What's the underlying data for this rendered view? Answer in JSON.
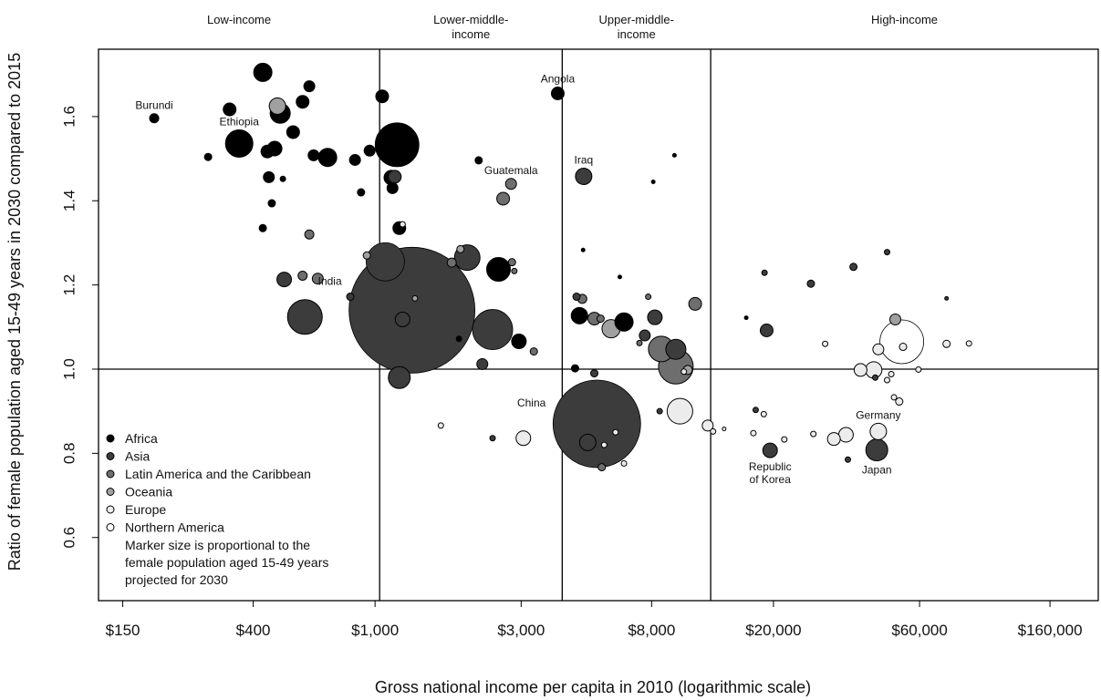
{
  "chart_data": {
    "type": "scatter",
    "title": "",
    "xlabel": "Gross national income per capita in 2010 (logarithmic scale)",
    "ylabel": "Ratio of female population aged 15-49 years in 2030 compared to 2015",
    "x_scale": "log",
    "xlim": [
      125,
      230000
    ],
    "ylim": [
      0.45,
      1.76
    ],
    "x_ticks": [
      150,
      400,
      1000,
      3000,
      8000,
      20000,
      60000,
      160000
    ],
    "x_tick_labels": [
      "$150",
      "$400",
      "$1,000",
      "$3,000",
      "$8,000",
      "$20,000",
      "$60,000",
      "$160,000"
    ],
    "y_ticks": [
      0.6,
      0.8,
      1.0,
      1.2,
      1.4,
      1.6
    ],
    "y_tick_labels": [
      "0.6",
      "0.8",
      "1.0",
      "1.2",
      "1.4",
      "1.6"
    ],
    "grid": false,
    "reference_lines": {
      "y": [
        1.0
      ],
      "x": [
        1035,
        4085,
        12475
      ]
    },
    "income_groups": [
      {
        "label": "Low-income",
        "x_from": 125,
        "x_to": 1035
      },
      {
        "label": "Lower-middle-\nincome",
        "x_from": 1035,
        "x_to": 4085
      },
      {
        "label": "Upper-middle-\nincome",
        "x_from": 4085,
        "x_to": 12475
      },
      {
        "label": "High-income",
        "x_from": 12475,
        "x_to": 230000
      }
    ],
    "regions": [
      {
        "name": "Africa",
        "color": "#000000"
      },
      {
        "name": "Asia",
        "color": "#3c3c3c"
      },
      {
        "name": "Latin America and the Caribbean",
        "color": "#6e6e6e"
      },
      {
        "name": "Oceania",
        "color": "#a0a0a0"
      },
      {
        "name": "Europe",
        "color": "#ececec"
      },
      {
        "name": "Northern America",
        "color": "#ffffff"
      }
    ],
    "legend_position": "bottom-left",
    "legend_note": "Marker size is proportional to the\nfemale population aged 15-49 years\nprojected for 2030",
    "points": [
      {
        "x": 190,
        "y": 1.596,
        "size": 5,
        "region": "Africa",
        "label": "Burundi"
      },
      {
        "x": 360,
        "y": 1.536,
        "size": 15,
        "region": "Africa",
        "label": "Ethiopia"
      },
      {
        "x": 335,
        "y": 1.617,
        "size": 7,
        "region": "Africa"
      },
      {
        "x": 430,
        "y": 1.705,
        "size": 10,
        "region": "Africa"
      },
      {
        "x": 480,
        "y": 1.625,
        "size": 9,
        "region": "Oceania"
      },
      {
        "x": 490,
        "y": 1.608,
        "size": 11,
        "region": "Africa"
      },
      {
        "x": 285,
        "y": 1.504,
        "size": 4,
        "region": "Africa"
      },
      {
        "x": 470,
        "y": 1.524,
        "size": 8,
        "region": "Africa"
      },
      {
        "x": 445,
        "y": 1.517,
        "size": 7,
        "region": "Africa"
      },
      {
        "x": 580,
        "y": 1.635,
        "size": 7,
        "region": "Africa"
      },
      {
        "x": 610,
        "y": 1.672,
        "size": 6,
        "region": "Africa"
      },
      {
        "x": 540,
        "y": 1.563,
        "size": 7,
        "region": "Africa"
      },
      {
        "x": 450,
        "y": 1.456,
        "size": 6,
        "region": "Africa"
      },
      {
        "x": 500,
        "y": 1.452,
        "size": 3,
        "region": "Africa"
      },
      {
        "x": 630,
        "y": 1.508,
        "size": 6,
        "region": "Africa"
      },
      {
        "x": 700,
        "y": 1.503,
        "size": 10,
        "region": "Africa"
      },
      {
        "x": 860,
        "y": 1.497,
        "size": 6,
        "region": "Africa"
      },
      {
        "x": 960,
        "y": 1.519,
        "size": 6,
        "region": "Africa"
      },
      {
        "x": 1180,
        "y": 1.533,
        "size": 24,
        "region": "Africa"
      },
      {
        "x": 1055,
        "y": 1.648,
        "size": 7,
        "region": "Africa"
      },
      {
        "x": 1130,
        "y": 1.455,
        "size": 8,
        "region": "Africa"
      },
      {
        "x": 1160,
        "y": 1.457,
        "size": 7,
        "region": "Asia"
      },
      {
        "x": 1140,
        "y": 1.43,
        "size": 6,
        "region": "Africa"
      },
      {
        "x": 460,
        "y": 1.394,
        "size": 4,
        "region": "Africa"
      },
      {
        "x": 430,
        "y": 1.335,
        "size": 4,
        "region": "Africa"
      },
      {
        "x": 900,
        "y": 1.42,
        "size": 4,
        "region": "Africa"
      },
      {
        "x": 1200,
        "y": 1.335,
        "size": 7,
        "region": "Africa"
      },
      {
        "x": 1230,
        "y": 1.344,
        "size": 3,
        "region": "Europe"
      },
      {
        "x": 1080,
        "y": 1.255,
        "size": 21,
        "region": "Asia"
      },
      {
        "x": 940,
        "y": 1.27,
        "size": 4,
        "region": "Oceania"
      },
      {
        "x": 830,
        "y": 1.172,
        "size": 4,
        "region": "Asia"
      },
      {
        "x": 610,
        "y": 1.32,
        "size": 5,
        "region": "Latin America and the Caribbean"
      },
      {
        "x": 505,
        "y": 1.213,
        "size": 8,
        "region": "Asia"
      },
      {
        "x": 580,
        "y": 1.222,
        "size": 5,
        "region": "Latin America and the Caribbean"
      },
      {
        "x": 650,
        "y": 1.215,
        "size": 6,
        "region": "Latin America and the Caribbean"
      },
      {
        "x": 590,
        "y": 1.124,
        "size": 19,
        "region": "Asia"
      },
      {
        "x": 1320,
        "y": 1.14,
        "size": 69,
        "region": "Asia",
        "label": "India"
      },
      {
        "x": 1230,
        "y": 1.118,
        "size": 8,
        "region": "Asia"
      },
      {
        "x": 1350,
        "y": 1.168,
        "size": 3,
        "region": "Oceania"
      },
      {
        "x": 1200,
        "y": 0.98,
        "size": 12,
        "region": "Asia"
      },
      {
        "x": 2000,
        "y": 1.265,
        "size": 14,
        "region": "Asia"
      },
      {
        "x": 1900,
        "y": 1.285,
        "size": 4,
        "region": "Oceania"
      },
      {
        "x": 1780,
        "y": 1.253,
        "size": 5,
        "region": "Latin America and the Caribbean"
      },
      {
        "x": 2530,
        "y": 1.237,
        "size": 13,
        "region": "Africa"
      },
      {
        "x": 2800,
        "y": 1.254,
        "size": 4,
        "region": "Latin America and the Caribbean"
      },
      {
        "x": 2850,
        "y": 1.233,
        "size": 3,
        "region": "Latin America and the Caribbean"
      },
      {
        "x": 2420,
        "y": 1.094,
        "size": 22,
        "region": "Asia"
      },
      {
        "x": 2180,
        "y": 1.496,
        "size": 4,
        "region": "Africa"
      },
      {
        "x": 2620,
        "y": 1.405,
        "size": 7,
        "region": "Latin America and the Caribbean"
      },
      {
        "x": 2780,
        "y": 1.44,
        "size": 6,
        "region": "Latin America and the Caribbean",
        "label": "Guatemala"
      },
      {
        "x": 1880,
        "y": 1.072,
        "size": 3,
        "region": "Africa"
      },
      {
        "x": 2240,
        "y": 1.012,
        "size": 6,
        "region": "Asia"
      },
      {
        "x": 2950,
        "y": 1.066,
        "size": 8,
        "region": "Africa"
      },
      {
        "x": 3300,
        "y": 1.042,
        "size": 4,
        "region": "Latin America and the Caribbean"
      },
      {
        "x": 1640,
        "y": 0.866,
        "size": 3,
        "region": "Europe"
      },
      {
        "x": 2420,
        "y": 0.836,
        "size": 3,
        "region": "Asia"
      },
      {
        "x": 3050,
        "y": 0.836,
        "size": 8,
        "region": "Europe"
      },
      {
        "x": 3950,
        "y": 1.655,
        "size": 7,
        "region": "Africa",
        "label": "Angola"
      },
      {
        "x": 4800,
        "y": 1.458,
        "size": 9,
        "region": "Asia",
        "label": "Iraq"
      },
      {
        "x": 4550,
        "y": 1.172,
        "size": 4,
        "region": "Asia"
      },
      {
        "x": 4750,
        "y": 1.167,
        "size": 5,
        "region": "Latin America and the Caribbean"
      },
      {
        "x": 4650,
        "y": 1.127,
        "size": 9,
        "region": "Africa"
      },
      {
        "x": 5200,
        "y": 1.12,
        "size": 7,
        "region": "Latin America and the Caribbean"
      },
      {
        "x": 5450,
        "y": 1.12,
        "size": 4,
        "region": "Latin America and the Caribbean"
      },
      {
        "x": 5900,
        "y": 1.096,
        "size": 10,
        "region": "Oceania"
      },
      {
        "x": 6500,
        "y": 1.112,
        "size": 10,
        "region": "Africa"
      },
      {
        "x": 4500,
        "y": 1.002,
        "size": 4,
        "region": "Africa"
      },
      {
        "x": 4780,
        "y": 1.283,
        "size": 2,
        "region": "Africa"
      },
      {
        "x": 6300,
        "y": 1.219,
        "size": 2,
        "region": "Africa"
      },
      {
        "x": 5200,
        "y": 0.99,
        "size": 4,
        "region": "Asia"
      },
      {
        "x": 5300,
        "y": 0.87,
        "size": 48,
        "region": "Asia",
        "label": "China"
      },
      {
        "x": 4950,
        "y": 0.826,
        "size": 9,
        "region": "Asia"
      },
      {
        "x": 5600,
        "y": 0.82,
        "size": 3,
        "region": "Europe"
      },
      {
        "x": 5500,
        "y": 0.767,
        "size": 4,
        "region": "Latin America and the Caribbean"
      },
      {
        "x": 6100,
        "y": 0.85,
        "size": 3,
        "region": "Europe"
      },
      {
        "x": 6500,
        "y": 0.776,
        "size": 3,
        "region": "Europe"
      },
      {
        "x": 7300,
        "y": 1.062,
        "size": 3,
        "region": "Latin America and the Caribbean"
      },
      {
        "x": 7600,
        "y": 1.08,
        "size": 6,
        "region": "Asia"
      },
      {
        "x": 8200,
        "y": 1.123,
        "size": 8,
        "region": "Asia"
      },
      {
        "x": 7800,
        "y": 1.172,
        "size": 3,
        "region": "Latin America and the Caribbean"
      },
      {
        "x": 8600,
        "y": 1.048,
        "size": 14,
        "region": "Latin America and the Caribbean"
      },
      {
        "x": 9600,
        "y": 1.047,
        "size": 11,
        "region": "Asia"
      },
      {
        "x": 9600,
        "y": 1.006,
        "size": 19,
        "region": "Latin America and the Caribbean"
      },
      {
        "x": 10500,
        "y": 0.998,
        "size": 5,
        "region": "Oceania"
      },
      {
        "x": 11100,
        "y": 1.155,
        "size": 7,
        "region": "Latin America and the Caribbean"
      },
      {
        "x": 8100,
        "y": 1.445,
        "size": 2,
        "region": "Africa"
      },
      {
        "x": 9500,
        "y": 1.508,
        "size": 2,
        "region": "Africa"
      },
      {
        "x": 8500,
        "y": 0.9,
        "size": 3,
        "region": "Asia"
      },
      {
        "x": 9900,
        "y": 0.9,
        "size": 14,
        "region": "Europe"
      },
      {
        "x": 10200,
        "y": 0.994,
        "size": 3,
        "region": "Europe"
      },
      {
        "x": 12200,
        "y": 0.866,
        "size": 6,
        "region": "Europe"
      },
      {
        "x": 12700,
        "y": 0.852,
        "size": 3,
        "region": "Europe"
      },
      {
        "x": 13800,
        "y": 0.858,
        "size": 2,
        "region": "Europe"
      },
      {
        "x": 16300,
        "y": 1.122,
        "size": 2,
        "region": "Africa"
      },
      {
        "x": 19000,
        "y": 1.092,
        "size": 7,
        "region": "Asia"
      },
      {
        "x": 18700,
        "y": 1.229,
        "size": 3,
        "region": "Asia"
      },
      {
        "x": 19500,
        "y": 0.807,
        "size": 8,
        "region": "Asia",
        "label": "Republic\nof Korea"
      },
      {
        "x": 17200,
        "y": 0.848,
        "size": 3,
        "region": "Europe"
      },
      {
        "x": 17500,
        "y": 0.903,
        "size": 3,
        "region": "Asia"
      },
      {
        "x": 18600,
        "y": 0.893,
        "size": 3,
        "region": "Europe"
      },
      {
        "x": 21700,
        "y": 0.833,
        "size": 3,
        "region": "Europe"
      },
      {
        "x": 26500,
        "y": 1.203,
        "size": 4,
        "region": "Asia"
      },
      {
        "x": 29500,
        "y": 1.06,
        "size": 3,
        "region": "Europe"
      },
      {
        "x": 27000,
        "y": 0.846,
        "size": 3,
        "region": "Europe"
      },
      {
        "x": 31500,
        "y": 0.834,
        "size": 7,
        "region": "Europe"
      },
      {
        "x": 34500,
        "y": 0.844,
        "size": 8,
        "region": "Europe"
      },
      {
        "x": 35000,
        "y": 0.785,
        "size": 3,
        "region": "Asia"
      },
      {
        "x": 36500,
        "y": 1.243,
        "size": 4,
        "region": "Asia"
      },
      {
        "x": 38500,
        "y": 0.998,
        "size": 7,
        "region": "Europe"
      },
      {
        "x": 42500,
        "y": 0.998,
        "size": 9,
        "region": "Europe"
      },
      {
        "x": 44000,
        "y": 1.047,
        "size": 6,
        "region": "Europe"
      },
      {
        "x": 43000,
        "y": 0.98,
        "size": 3,
        "region": "Asia"
      },
      {
        "x": 47000,
        "y": 1.278,
        "size": 3,
        "region": "Asia"
      },
      {
        "x": 43500,
        "y": 0.808,
        "size": 12,
        "region": "Asia",
        "label": "Japan"
      },
      {
        "x": 44000,
        "y": 0.852,
        "size": 9,
        "region": "Europe",
        "label": "Germany"
      },
      {
        "x": 47000,
        "y": 0.974,
        "size": 3,
        "region": "Europe"
      },
      {
        "x": 48500,
        "y": 0.988,
        "size": 3,
        "region": "Europe"
      },
      {
        "x": 50000,
        "y": 1.118,
        "size": 6,
        "region": "Oceania"
      },
      {
        "x": 52500,
        "y": 1.065,
        "size": 24,
        "region": "Northern America"
      },
      {
        "x": 53000,
        "y": 1.053,
        "size": 4,
        "region": "Europe"
      },
      {
        "x": 49500,
        "y": 0.933,
        "size": 3,
        "region": "Europe"
      },
      {
        "x": 51500,
        "y": 0.923,
        "size": 4,
        "region": "Europe"
      },
      {
        "x": 59500,
        "y": 0.999,
        "size": 3,
        "region": "Europe"
      },
      {
        "x": 73500,
        "y": 1.06,
        "size": 4,
        "region": "Europe"
      },
      {
        "x": 87000,
        "y": 1.061,
        "size": 3,
        "region": "Europe"
      },
      {
        "x": 73500,
        "y": 1.168,
        "size": 2,
        "region": "Asia"
      }
    ]
  }
}
